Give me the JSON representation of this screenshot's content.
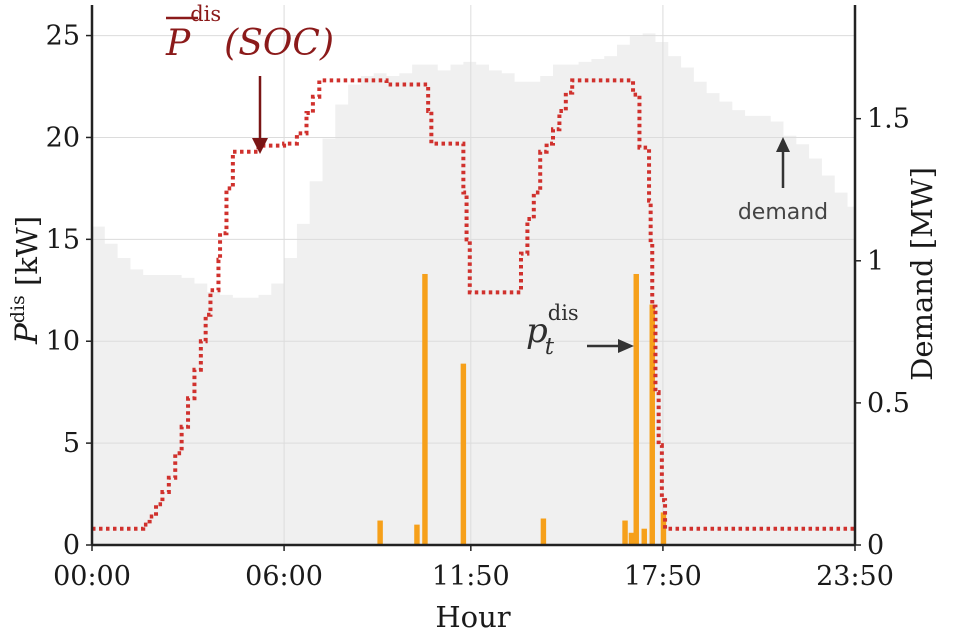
{
  "chart_data": {
    "type": "line",
    "xlabel": "Hour",
    "ylabel_left": "P^dis [kW]",
    "ylabel_left_parts": {
      "base": "P",
      "sup": "dis",
      "unit": " [kW]"
    },
    "ylabel_right": "Demand [MW]",
    "xlim_hours": [
      0,
      23.833
    ],
    "ylim_left": [
      0,
      26.5
    ],
    "ylim_right": [
      0,
      1.9
    ],
    "x_ticks": [
      {
        "value": 0,
        "label": "00:00"
      },
      {
        "value": 6,
        "label": "06:00"
      },
      {
        "value": 11.833,
        "label": "11:50"
      },
      {
        "value": 17.833,
        "label": "17:50"
      },
      {
        "value": 23.833,
        "label": "23:50"
      }
    ],
    "y_ticks_left": [
      0,
      5,
      10,
      15,
      20,
      25
    ],
    "y_ticks_right": [
      {
        "value": 0,
        "label": "0"
      },
      {
        "value": 0.5,
        "label": "0.5"
      },
      {
        "value": 1,
        "label": "1"
      },
      {
        "value": 1.5,
        "label": "1.5"
      }
    ],
    "grid": true,
    "colors": {
      "max_discharge": "#d0312d",
      "discharge": "#f6a01a",
      "demand": "#f0f0f0",
      "annotation_title": "#8b1a1a",
      "annotation": "#2f2f2f"
    },
    "series": [
      {
        "name": "P̄dis(SOC)",
        "kind": "step-dotted",
        "axis": "left",
        "points": [
          [
            0,
            0.8
          ],
          [
            1.4,
            0.8
          ],
          [
            1.6,
            1.0
          ],
          [
            1.8,
            1.4
          ],
          [
            2.0,
            2.0
          ],
          [
            2.2,
            2.6
          ],
          [
            2.4,
            3.3
          ],
          [
            2.6,
            4.5
          ],
          [
            2.8,
            5.8
          ],
          [
            3.0,
            7.2
          ],
          [
            3.2,
            8.6
          ],
          [
            3.4,
            10.0
          ],
          [
            3.55,
            11.3
          ],
          [
            3.7,
            12.5
          ],
          [
            3.95,
            14.0
          ],
          [
            4.0,
            15.3
          ],
          [
            4.2,
            17.5
          ],
          [
            4.4,
            19.3
          ],
          [
            5.2,
            19.6
          ],
          [
            6.0,
            19.7
          ],
          [
            6.4,
            20.2
          ],
          [
            6.7,
            21.2
          ],
          [
            6.9,
            22.0
          ],
          [
            7.1,
            22.8
          ],
          [
            9.0,
            22.8
          ],
          [
            9.2,
            22.6
          ],
          [
            10.3,
            22.6
          ],
          [
            10.5,
            21.3
          ],
          [
            10.6,
            19.7
          ],
          [
            11.5,
            19.7
          ],
          [
            11.6,
            17.3
          ],
          [
            11.7,
            15.0
          ],
          [
            11.8,
            12.4
          ],
          [
            12.6,
            12.4
          ],
          [
            13.3,
            12.4
          ],
          [
            13.4,
            14.3
          ],
          [
            13.6,
            16.0
          ],
          [
            13.8,
            17.3
          ],
          [
            14.0,
            19.3
          ],
          [
            14.2,
            19.7
          ],
          [
            14.4,
            20.4
          ],
          [
            14.6,
            21.3
          ],
          [
            14.8,
            22.2
          ],
          [
            15.0,
            22.8
          ],
          [
            16.7,
            22.8
          ],
          [
            16.9,
            22.1
          ],
          [
            17.1,
            19.5
          ],
          [
            17.3,
            19.5
          ],
          [
            17.4,
            16.9
          ],
          [
            17.45,
            14.8
          ],
          [
            17.5,
            11.7
          ],
          [
            17.6,
            7.5
          ],
          [
            17.7,
            4.9
          ],
          [
            17.8,
            2.2
          ],
          [
            17.9,
            0.8
          ],
          [
            23.833,
            0.8
          ]
        ]
      },
      {
        "name": "p_t^dis",
        "kind": "bar",
        "axis": "left",
        "bar_width_hours": 0.17,
        "points": [
          [
            9.0,
            1.2
          ],
          [
            10.15,
            1.0
          ],
          [
            10.4,
            13.3
          ],
          [
            11.6,
            8.9
          ],
          [
            14.1,
            1.3
          ],
          [
            16.65,
            1.2
          ],
          [
            16.85,
            0.6
          ],
          [
            17.0,
            13.3
          ],
          [
            17.25,
            0.8
          ],
          [
            17.5,
            11.8
          ],
          [
            17.85,
            1.6
          ]
        ]
      },
      {
        "name": "demand",
        "kind": "area-step",
        "axis": "right",
        "points": [
          [
            0,
            1.12
          ],
          [
            0.4,
            1.06
          ],
          [
            0.8,
            1.01
          ],
          [
            1.2,
            0.97
          ],
          [
            1.6,
            0.95
          ],
          [
            2.0,
            0.95
          ],
          [
            2.4,
            0.95
          ],
          [
            2.8,
            0.94
          ],
          [
            3.2,
            0.92
          ],
          [
            3.6,
            0.89
          ],
          [
            4.0,
            0.88
          ],
          [
            4.4,
            0.87
          ],
          [
            4.8,
            0.87
          ],
          [
            5.2,
            0.88
          ],
          [
            5.6,
            0.92
          ],
          [
            6.0,
            1.01
          ],
          [
            6.4,
            1.13
          ],
          [
            6.8,
            1.28
          ],
          [
            7.2,
            1.43
          ],
          [
            7.6,
            1.55
          ],
          [
            8.0,
            1.62
          ],
          [
            8.4,
            1.65
          ],
          [
            8.8,
            1.66
          ],
          [
            9.2,
            1.65
          ],
          [
            9.6,
            1.66
          ],
          [
            10.0,
            1.69
          ],
          [
            10.4,
            1.69
          ],
          [
            10.8,
            1.67
          ],
          [
            11.2,
            1.69
          ],
          [
            11.6,
            1.7
          ],
          [
            12.0,
            1.69
          ],
          [
            12.4,
            1.67
          ],
          [
            12.8,
            1.66
          ],
          [
            13.2,
            1.63
          ],
          [
            13.6,
            1.63
          ],
          [
            14.0,
            1.65
          ],
          [
            14.4,
            1.69
          ],
          [
            14.8,
            1.69
          ],
          [
            15.2,
            1.7
          ],
          [
            15.6,
            1.71
          ],
          [
            16.0,
            1.72
          ],
          [
            16.4,
            1.76
          ],
          [
            16.8,
            1.79
          ],
          [
            17.2,
            1.8
          ],
          [
            17.6,
            1.77
          ],
          [
            18.0,
            1.72
          ],
          [
            18.4,
            1.68
          ],
          [
            18.8,
            1.63
          ],
          [
            19.2,
            1.59
          ],
          [
            19.6,
            1.56
          ],
          [
            20.0,
            1.53
          ],
          [
            20.4,
            1.51
          ],
          [
            20.8,
            1.51
          ],
          [
            21.2,
            1.49
          ],
          [
            21.6,
            1.44
          ],
          [
            22.0,
            1.41
          ],
          [
            22.4,
            1.36
          ],
          [
            22.8,
            1.3
          ],
          [
            23.2,
            1.24
          ],
          [
            23.6,
            1.19
          ],
          [
            23.833,
            1.16
          ]
        ]
      }
    ],
    "annotations": {
      "pbar_base": "P",
      "pbar_sup": "dis",
      "pbar_arg": "(SOC)",
      "pt_base": "p",
      "pt_sub": "t",
      "pt_sup": "dis",
      "demand_label": "demand"
    }
  }
}
